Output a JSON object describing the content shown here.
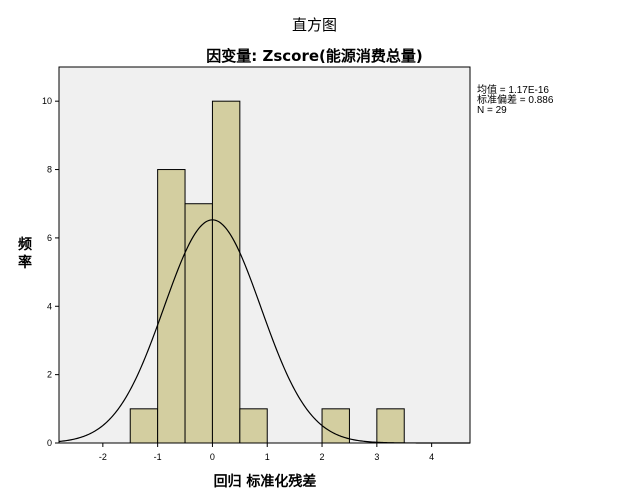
{
  "chart_data": {
    "type": "bar",
    "title": "直方图",
    "subtitle": "因变量: Zscore(能源消费总量)",
    "xlabel": "回归 标准化残差",
    "ylabel": "频率",
    "xlim": [
      -2.8,
      4.7
    ],
    "ylim": [
      0,
      11
    ],
    "xticks": [
      -2,
      -1,
      0,
      1,
      2,
      3,
      4
    ],
    "yticks": [
      0,
      2,
      4,
      6,
      8,
      10
    ],
    "bin_width": 0.5,
    "bins": [
      {
        "start": -1.5,
        "end": -1.0,
        "count": 1
      },
      {
        "start": -1.0,
        "end": -0.5,
        "count": 8
      },
      {
        "start": -0.5,
        "end": 0.0,
        "count": 7
      },
      {
        "start": 0.0,
        "end": 0.5,
        "count": 10
      },
      {
        "start": 0.5,
        "end": 1.0,
        "count": 1
      },
      {
        "start": 2.0,
        "end": 2.5,
        "count": 1
      },
      {
        "start": 3.0,
        "end": 3.5,
        "count": 1
      }
    ],
    "normal_curve": {
      "mean": 0.0,
      "sd": 0.886,
      "n": 29
    },
    "stats": {
      "mean": "均值 = 1.17E-16",
      "sd": "标准偏差 = 0.886",
      "n": "N = 29"
    },
    "colors": {
      "bar_fill": "#d3cea0",
      "bar_stroke": "#000000",
      "plot_bg": "#f0f0f0"
    },
    "grid": false,
    "legend": "none"
  }
}
